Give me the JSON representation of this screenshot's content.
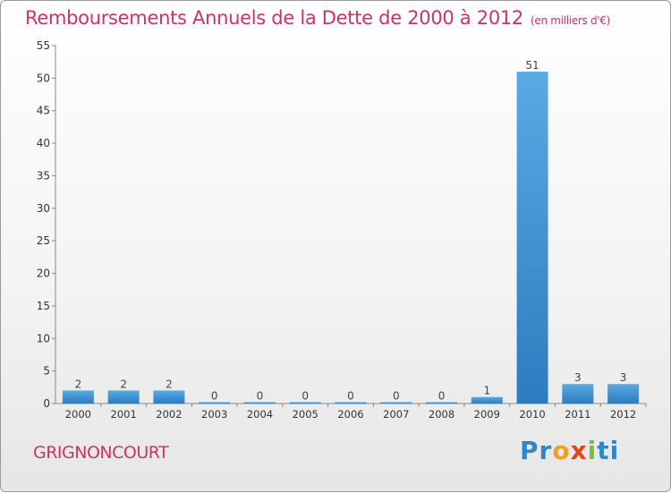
{
  "title": "Remboursements Annuels de la Dette de 2000 à 2012",
  "unit": "(en milliers d'€)",
  "city": "GRIGNONCOURT",
  "logo": {
    "p": "Pr",
    "o": "o",
    "x": "x",
    "i": "i",
    "t": "ti"
  },
  "colors": {
    "title": "#cc3366",
    "bar_top": "#5aaae4",
    "bar_bottom": "#2c7cc0"
  },
  "chart_data": {
    "type": "bar",
    "title": "Remboursements Annuels de la Dette de 2000 à 2012",
    "categories": [
      "2000",
      "2001",
      "2002",
      "2003",
      "2004",
      "2005",
      "2006",
      "2007",
      "2008",
      "2009",
      "2010",
      "2011",
      "2012"
    ],
    "values": [
      2,
      2,
      2,
      0,
      0,
      0,
      0,
      0,
      0,
      1,
      51,
      3,
      3
    ],
    "ylim": [
      0,
      55
    ],
    "yticks": [
      0,
      5,
      10,
      15,
      20,
      25,
      30,
      35,
      40,
      45,
      50,
      55
    ],
    "grid": false,
    "legend": "none"
  }
}
